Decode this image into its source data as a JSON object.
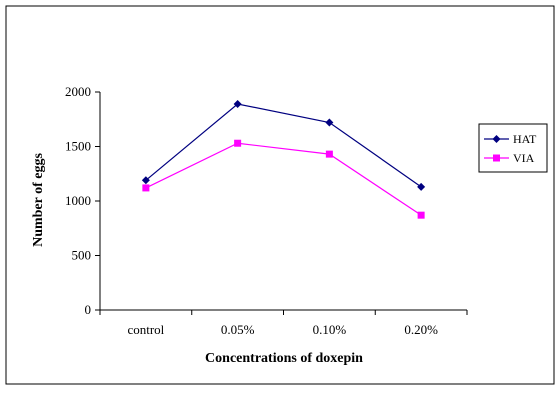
{
  "chart_data": {
    "type": "line",
    "title": "",
    "xlabel": "Concentrations of doxepin",
    "ylabel": "Number of eggs",
    "categories": [
      "control",
      "0.05%",
      "0.10%",
      "0.20%"
    ],
    "ylim": [
      0,
      2000
    ],
    "yticks": [
      0,
      500,
      1000,
      1500,
      2000
    ],
    "grid": false,
    "legend_position": "right",
    "series": [
      {
        "name": "HAT",
        "values": [
          1190,
          1890,
          1720,
          1130
        ],
        "color": "#000080",
        "marker": "diamond"
      },
      {
        "name": "VIA",
        "values": [
          1120,
          1530,
          1430,
          870
        ],
        "color": "#ff00ff",
        "marker": "square"
      }
    ]
  }
}
